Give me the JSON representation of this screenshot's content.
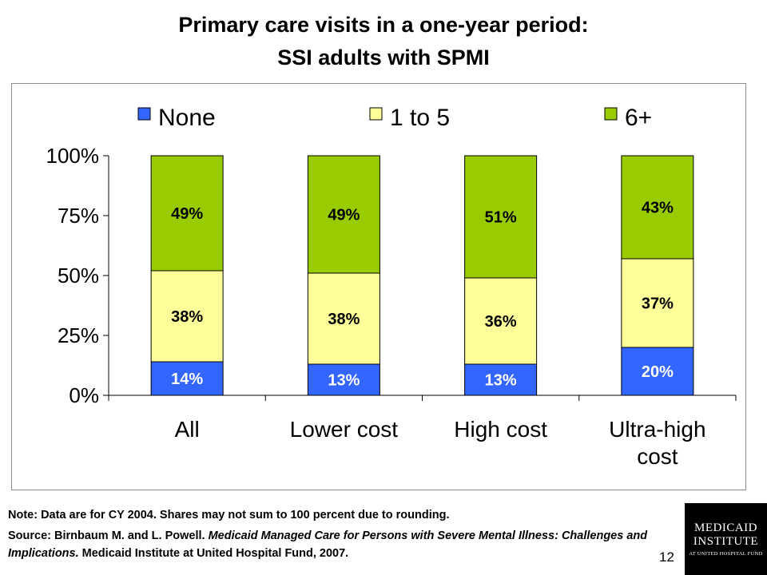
{
  "title_line1": "Primary care visits in a one-year period:",
  "title_line2": "SSI adults with SPMI",
  "chart_data": {
    "type": "bar",
    "stacked": true,
    "categories": [
      [
        "All"
      ],
      [
        "Lower cost"
      ],
      [
        "High cost"
      ],
      [
        "Ultra-high",
        "cost"
      ]
    ],
    "series": [
      {
        "name": "None",
        "color": "#3366ff",
        "values": [
          14,
          13,
          13,
          20
        ],
        "labels": [
          "14%",
          "13%",
          "13%",
          "20%"
        ],
        "label_color": "#ffffff"
      },
      {
        "name": "1 to 5",
        "color": "#ffff99",
        "values": [
          38,
          38,
          36,
          37
        ],
        "labels": [
          "38%",
          "38%",
          "36%",
          "37%"
        ],
        "label_color": "#000000"
      },
      {
        "name": "6+",
        "color": "#99cc00",
        "values": [
          49,
          49,
          51,
          43
        ],
        "labels": [
          "49%",
          "49%",
          "51%",
          "43%"
        ],
        "label_color": "#000000"
      }
    ],
    "ylim": [
      0,
      100
    ],
    "yticks": [
      0,
      25,
      50,
      75,
      100
    ],
    "ytick_labels": [
      "0%",
      "25%",
      "50%",
      "75%",
      "100%"
    ],
    "legend_position": "top",
    "grid": false
  },
  "note": "Note:  Data are for CY 2004.  Shares may not sum to 100 percent due to rounding.",
  "source_prefix": "Source:  Birnbaum M. and L. Powell. ",
  "source_title": "Medicaid Managed Care for Persons with Severe  Mental Illness: Challenges and Implications.",
  "source_suffix": " Medicaid Institute at United Hospital Fund, 2007.",
  "page_number": "12",
  "logo": {
    "line1": "MEDICAID",
    "line2": "INSTITUTE",
    "line3": "AT UNITED HOSPITAL FUND"
  }
}
